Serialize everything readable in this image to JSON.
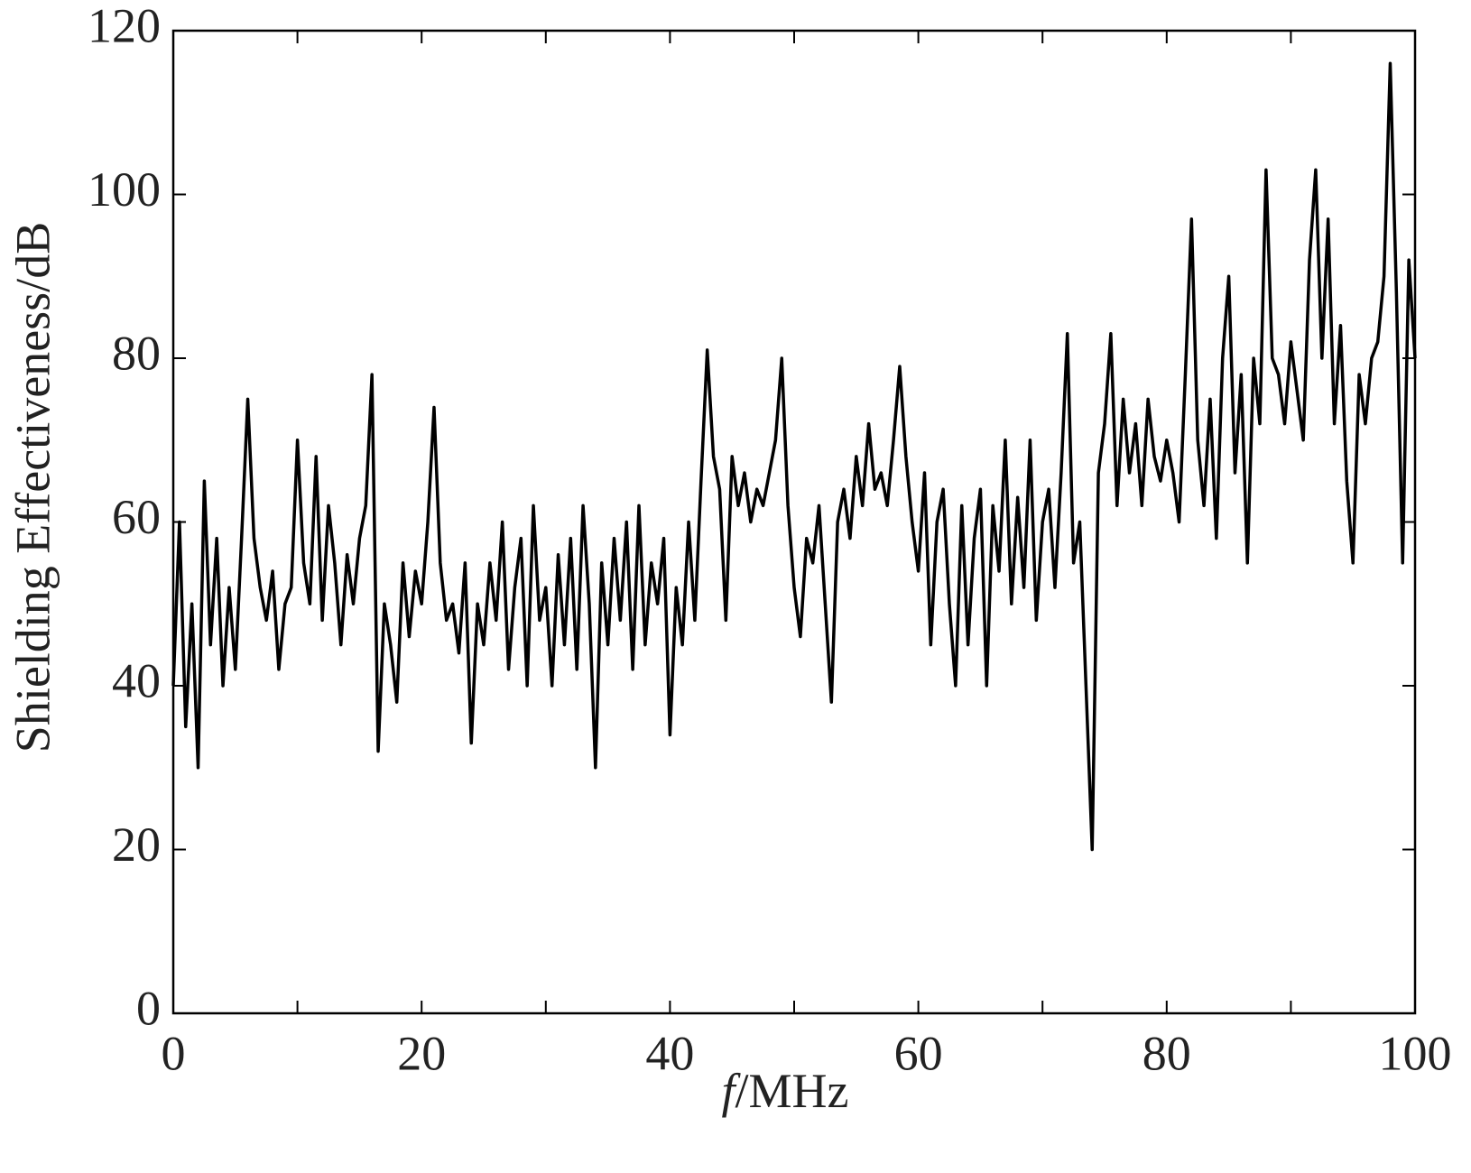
{
  "chart_data": {
    "type": "line",
    "ylabel": "Shielding Effectiveness/dB",
    "xlabel": [
      "f",
      "/MHz"
    ],
    "xlim": [
      0,
      100
    ],
    "xticks": [
      0,
      20,
      40,
      60,
      80,
      100
    ],
    "ylim": [
      0,
      120
    ],
    "yticks": [
      0,
      20,
      40,
      60,
      80,
      100,
      120
    ],
    "series": [
      {
        "color": "#000000",
        "x": [
          0,
          0.5,
          1,
          1.5,
          2,
          2.5,
          3,
          3.5,
          4,
          4.5,
          5,
          5.5,
          6,
          6.5,
          7,
          7.5,
          8,
          8.5,
          9,
          9.5,
          10,
          10.5,
          11,
          11.5,
          12,
          12.5,
          13,
          13.5,
          14,
          14.5,
          15,
          15.5,
          16,
          16.5,
          17,
          17.5,
          18,
          18.5,
          19,
          19.5,
          20,
          20.5,
          21,
          21.5,
          22,
          22.5,
          23,
          23.5,
          24,
          24.5,
          25,
          25.5,
          26,
          26.5,
          27,
          27.5,
          28,
          28.5,
          29,
          29.5,
          30,
          30.5,
          31,
          31.5,
          32,
          32.5,
          33,
          33.5,
          34,
          34.5,
          35,
          35.5,
          36,
          36.5,
          37,
          37.5,
          38,
          38.5,
          39,
          39.5,
          40,
          40.5,
          41,
          41.5,
          42,
          42.5,
          43,
          43.5,
          44,
          44.5,
          45,
          45.5,
          46,
          46.5,
          47,
          47.5,
          48,
          48.5,
          49,
          49.5,
          50,
          50.5,
          51,
          51.5,
          52,
          52.5,
          53,
          53.5,
          54,
          54.5,
          55,
          55.5,
          56,
          56.5,
          57,
          57.5,
          58,
          58.5,
          59,
          59.5,
          60,
          60.5,
          61,
          61.5,
          62,
          62.5,
          63,
          63.5,
          64,
          64.5,
          65,
          65.5,
          66,
          66.5,
          67,
          67.5,
          68,
          68.5,
          69,
          69.5,
          70,
          70.5,
          71,
          71.5,
          72,
          72.5,
          73,
          73.5,
          74,
          74.5,
          75,
          75.5,
          76,
          76.5,
          77,
          77.5,
          78,
          78.5,
          79,
          79.5,
          80,
          80.5,
          81,
          81.5,
          82,
          82.5,
          83,
          83.5,
          84,
          84.5,
          85,
          85.5,
          86,
          86.5,
          87,
          87.5,
          88,
          88.5,
          89,
          89.5,
          90,
          90.5,
          91,
          91.5,
          92,
          92.5,
          93,
          93.5,
          94,
          94.5,
          95,
          95.5,
          96,
          96.5,
          97,
          97.5,
          98,
          98.5,
          99,
          99.5,
          100
        ],
        "values": [
          40,
          60,
          35,
          50,
          30,
          65,
          45,
          58,
          40,
          52,
          42,
          58,
          75,
          58,
          52,
          48,
          54,
          42,
          50,
          52,
          70,
          55,
          50,
          68,
          48,
          62,
          55,
          45,
          56,
          50,
          58,
          62,
          78,
          32,
          50,
          45,
          38,
          55,
          46,
          54,
          50,
          60,
          74,
          55,
          48,
          50,
          44,
          55,
          33,
          50,
          45,
          55,
          48,
          60,
          42,
          52,
          58,
          40,
          62,
          48,
          52,
          40,
          56,
          45,
          58,
          42,
          62,
          50,
          30,
          55,
          45,
          58,
          48,
          60,
          42,
          62,
          45,
          55,
          50,
          58,
          34,
          52,
          45,
          60,
          48,
          65,
          81,
          68,
          64,
          48,
          68,
          62,
          66,
          60,
          64,
          62,
          66,
          70,
          80,
          62,
          52,
          46,
          58,
          55,
          62,
          50,
          38,
          60,
          64,
          58,
          68,
          62,
          72,
          64,
          66,
          62,
          70,
          79,
          68,
          60,
          54,
          66,
          45,
          60,
          64,
          50,
          40,
          62,
          45,
          58,
          64,
          40,
          62,
          54,
          70,
          50,
          63,
          52,
          70,
          48,
          60,
          64,
          52,
          66,
          83,
          55,
          60,
          40,
          20,
          66,
          72,
          83,
          62,
          75,
          66,
          72,
          62,
          75,
          68,
          65,
          70,
          66,
          60,
          78,
          97,
          70,
          62,
          75,
          58,
          80,
          90,
          66,
          78,
          55,
          80,
          72,
          103,
          80,
          78,
          72,
          82,
          76,
          70,
          92,
          103,
          80,
          97,
          72,
          84,
          65,
          55,
          78,
          72,
          80,
          82,
          90,
          116,
          88,
          55,
          92,
          80
        ]
      }
    ]
  }
}
